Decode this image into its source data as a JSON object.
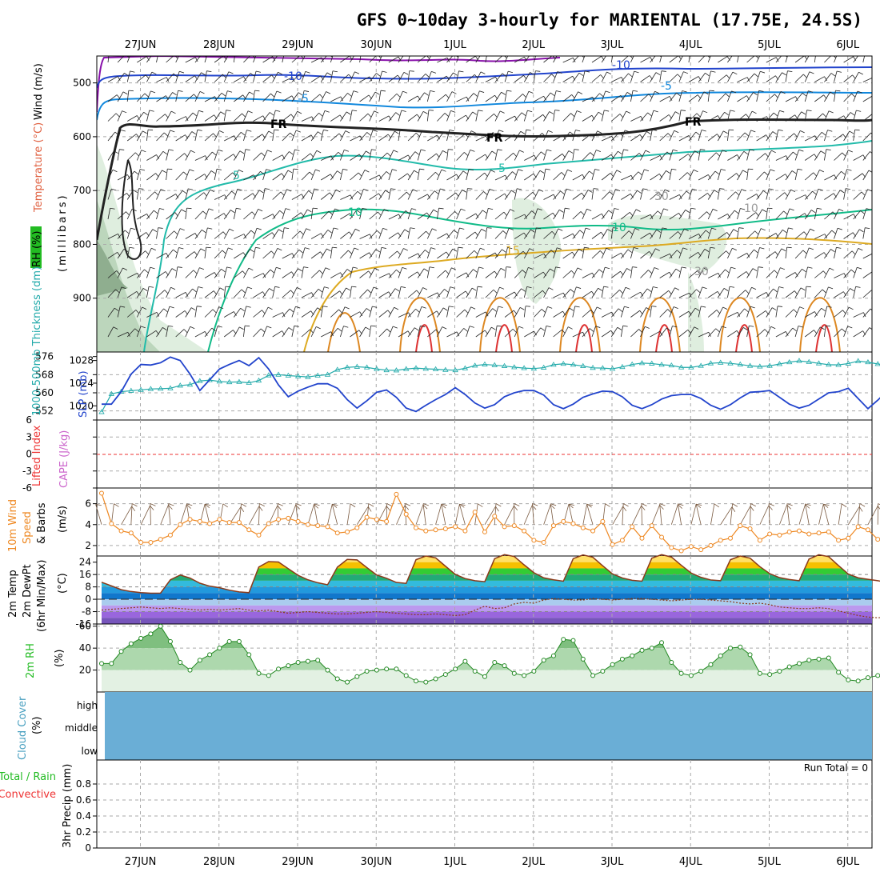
{
  "title": "GFS 0~10day 3-hourly for MARIENTAL (17.75E, 24.5S)",
  "date_labels": [
    "27JUN",
    "28JUN",
    "29JUN",
    "30JUN",
    "1JUL",
    "2JUL",
    "3JUL",
    "4JUL",
    "5JUL",
    "6JUL"
  ],
  "colors": {
    "temperature": "#e06040",
    "wind": "#404040",
    "rh": "#22bb22",
    "slp": "#2244cc",
    "thickness": "#22aaaa",
    "cape": "#cc66cc",
    "lifted_index": "#ee3333",
    "wind10m": "#ee8822",
    "cloud": "#6aaed6",
    "precip_total": "#22bb22",
    "precip_convective": "#ee3333"
  },
  "chart_data": [
    {
      "type": "contour",
      "panel": "upper_air",
      "ylabel_rh": "RH (%)",
      "ylabel_temp": "Temperature (°C)",
      "ylabel_wind": "Wind (m/s)",
      "ylabel_pressure": "(millibars)",
      "y_ticks": [
        "500",
        "600",
        "700",
        "800",
        "900"
      ],
      "ylim": [
        1000,
        450
      ],
      "contour_labels": [
        "-10",
        "-10",
        "-5",
        "-5",
        "5",
        "FR",
        "FR",
        "FR",
        "-5",
        "5",
        "10",
        "10",
        "15",
        "30",
        "10",
        "30"
      ]
    },
    {
      "type": "line",
      "panel": "thickness_slp",
      "ylabel_thickness": "1000-500mb Thickness (dm)",
      "ylabel_slp": "SLP (mb)",
      "thickness_ticks": [
        "576",
        "568",
        "560",
        "552"
      ],
      "slp_ticks": [
        "1028",
        "1024",
        "1020"
      ],
      "series": [
        {
          "name": "SLP (mb)",
          "values": [
            1020.3,
            1020.3,
            1022.5,
            1025.6,
            1027.3,
            1027.2,
            1027.6,
            1028.6,
            1028.0,
            1025.6,
            1022.7,
            1024.6,
            1026.5,
            1027.3,
            1028.0,
            1027.1,
            1028.5,
            1026.5,
            1023.7,
            1021.6,
            1022.6,
            1023.3,
            1023.9,
            1023.9,
            1023.1,
            1021.1,
            1019.6,
            1020.9,
            1022.4,
            1022.8,
            1021.5,
            1019.6,
            1019.0,
            1020.1,
            1021.1,
            1022.0,
            1023.2,
            1022.0,
            1020.5,
            1019.6,
            1020.2,
            1021.6,
            1022.3,
            1022.7,
            1022.7,
            1021.9,
            1020.2,
            1019.5,
            1020.3,
            1021.5,
            1022.1,
            1022.6,
            1022.5,
            1021.6,
            1020.1,
            1019.5,
            1020.2,
            1021.2,
            1021.8,
            1022.0,
            1022.0,
            1021.3,
            1020.1,
            1019.4,
            1020.2,
            1021.4,
            1022.4,
            1022.5,
            1022.7,
            1021.5,
            1020.3,
            1019.6,
            1020.1,
            1021.2,
            1022.3,
            1022.5,
            1023.1,
            1021.3,
            1019.5,
            1021.0,
            1022.7
          ]
        },
        {
          "name": "1000-500mb Thickness (dm)",
          "values": [
            551.5,
            559.5,
            560.5,
            560.9,
            561.3,
            561.7,
            561.8,
            562.0,
            563.2,
            563.6,
            565.2,
            565.6,
            565.0,
            564.7,
            564.8,
            564.4,
            565.4,
            567.7,
            568.0,
            567.6,
            567.3,
            567.0,
            567.6,
            568.0,
            570.2,
            571.2,
            571.5,
            571.2,
            570.5,
            570.0,
            569.9,
            570.5,
            570.9,
            570.6,
            570.4,
            570.1,
            570.0,
            570.8,
            572.0,
            572.5,
            572.2,
            571.8,
            571.3,
            570.9,
            570.7,
            571.1,
            572.4,
            572.8,
            572.4,
            571.8,
            571.0,
            570.9,
            570.6,
            571.4,
            572.5,
            573.1,
            572.9,
            572.4,
            572.1,
            571.2,
            571.2,
            571.9,
            573.0,
            573.3,
            573.0,
            572.5,
            571.9,
            571.6,
            571.9,
            572.7,
            573.5,
            574.1,
            573.6,
            573.0,
            572.4,
            572.3,
            572.9,
            574.0,
            573.5,
            572.7,
            572.1
          ]
        }
      ]
    },
    {
      "type": "line",
      "panel": "stability",
      "ylabel_li": "Lifted Index",
      "ylabel_cape": "CAPE (J/kg)",
      "y_ticks": [
        "6",
        "3",
        "0",
        "-3",
        "-6"
      ],
      "ylim": [
        -6,
        6
      ]
    },
    {
      "type": "line",
      "panel": "wind10m",
      "ylabel": "10m Wind Speed & Barbs (m/s)",
      "y_ticks": [
        "2",
        "4",
        "6"
      ],
      "ylim": [
        1,
        7.5
      ],
      "series": [
        {
          "name": "10m Wind Speed",
          "values": [
            7.0,
            4.1,
            3.4,
            3.2,
            2.3,
            2.3,
            2.6,
            3.0,
            4.0,
            4.5,
            4.3,
            4.1,
            4.5,
            4.2,
            4.2,
            3.5,
            3.0,
            4.1,
            4.5,
            4.6,
            4.3,
            4.0,
            3.9,
            3.8,
            3.2,
            3.3,
            3.7,
            4.7,
            4.5,
            4.3,
            6.9,
            5.0,
            3.7,
            3.4,
            3.5,
            3.6,
            3.8,
            3.4,
            5.2,
            3.3,
            4.8,
            3.8,
            3.9,
            3.4,
            2.5,
            2.3,
            3.9,
            4.3,
            4.1,
            3.7,
            3.4,
            4.3,
            2.1,
            2.5,
            3.8,
            2.7,
            3.9,
            2.8,
            1.8,
            1.5,
            1.9,
            1.6,
            2.0,
            2.5,
            2.7,
            3.9,
            3.6,
            2.5,
            3.1,
            3.0,
            3.3,
            3.4,
            3.1,
            3.2,
            3.3,
            2.5,
            2.7,
            3.8,
            3.5,
            2.6,
            2.4
          ]
        }
      ]
    },
    {
      "type": "area",
      "panel": "temperature",
      "ylabel": "2m Temp 2m DewPt (6hr Min/Max) (°C)",
      "y_ticks": [
        "24",
        "16",
        "8",
        "0",
        "-8",
        "-16"
      ],
      "ylim": [
        -16,
        28
      ],
      "series": [
        {
          "name": "2m Temp",
          "values": [
            11.0,
            8.7,
            6.2,
            5.0,
            4.3,
            3.9,
            4.0,
            12.6,
            15.7,
            13.7,
            10.4,
            8.5,
            7.5,
            5.9,
            4.8,
            4.3,
            20.9,
            24.4,
            24.1,
            19.8,
            15.5,
            12.6,
            10.7,
            9.4,
            20.8,
            25.8,
            25.5,
            20.5,
            15.7,
            13.6,
            10.9,
            10.3,
            25.6,
            28.0,
            26.8,
            21.4,
            16.1,
            13.4,
            12.0,
            11.4,
            26.3,
            28.9,
            27.7,
            22.3,
            17.2,
            13.9,
            12.6,
            11.7,
            26.3,
            28.7,
            27.2,
            21.7,
            16.4,
            13.8,
            12.3,
            11.7,
            26.6,
            28.9,
            27.3,
            22.0,
            17.0,
            14.2,
            12.5,
            12.0,
            25.6,
            28.0,
            26.6,
            21.1,
            16.6,
            14.0,
            12.8,
            12.0,
            26.0,
            28.8,
            27.6,
            21.8,
            16.3,
            13.9,
            12.9,
            12.0,
            11.0
          ]
        },
        {
          "name": "2m DewPt",
          "values": [
            -7.0,
            -6.5,
            -6.0,
            -5.5,
            -5.0,
            -5.5,
            -6.0,
            -5.5,
            -6.0,
            -6.5,
            -7.0,
            -6.5,
            -7.0,
            -6.5,
            -6.0,
            -7.0,
            -7.5,
            -7.0,
            -8.0,
            -9.0,
            -8.5,
            -8.0,
            -8.5,
            -9.0,
            -9.5,
            -9.5,
            -9.0,
            -8.5,
            -8.0,
            -8.5,
            -9.0,
            -9.5,
            -10.0,
            -10.0,
            -9.5,
            -10.0,
            -10.5,
            -10.0,
            -7.0,
            -4.5,
            -6.0,
            -5.5,
            -3.0,
            -2.0,
            -2.5,
            -0.5,
            0.5,
            0.0,
            -0.5,
            -0.5,
            0.5,
            0.0,
            -0.5,
            0.0,
            0.5,
            0.5,
            0.0,
            -0.5,
            -1.0,
            -0.5,
            0.0,
            0.0,
            -0.5,
            -1.0,
            -1.5,
            -2.5,
            -3.0,
            -2.5,
            -3.5,
            -5.0,
            -5.5,
            -6.0,
            -6.0,
            -5.5,
            -6.0,
            -7.5,
            -9.0,
            -10.5,
            -11.5,
            -12.0,
            -11.5
          ]
        }
      ]
    },
    {
      "type": "area",
      "panel": "rh2m",
      "ylabel": "2m RH (%)",
      "y_ticks": [
        "20",
        "40",
        "60"
      ],
      "ylim": [
        0,
        62
      ],
      "series": [
        {
          "name": "2m RH",
          "values": [
            26,
            26,
            37,
            44,
            49,
            53,
            60,
            46,
            27,
            20,
            29,
            34,
            40,
            46,
            46,
            34,
            17,
            15,
            21,
            24,
            27,
            28,
            29,
            20,
            12,
            9,
            14,
            19,
            20,
            21,
            21,
            15,
            10,
            9,
            12,
            16,
            21,
            28,
            19,
            14,
            27,
            24,
            17,
            15,
            19,
            29,
            33,
            48,
            47,
            30,
            15,
            19,
            25,
            30,
            33,
            38,
            40,
            45,
            27,
            17,
            15,
            19,
            25,
            33,
            40,
            41,
            34,
            17,
            16,
            19,
            23,
            26,
            29,
            30,
            31,
            18,
            11,
            10,
            13,
            15,
            16
          ]
        }
      ]
    },
    {
      "type": "area",
      "panel": "cloud_cover",
      "ylabel": "Cloud Cover (%)",
      "levels": [
        "high",
        "middle",
        "low"
      ]
    },
    {
      "type": "bar",
      "panel": "precip",
      "ylabel_total": "Total / Rain",
      "ylabel_conv": "Convective",
      "ylabel_main": "3hr Precip (mm)",
      "run_total": "Run Total = 0",
      "y_ticks": [
        "0",
        "0.2",
        "0.4",
        "0.6",
        "0.8"
      ],
      "ylim": [
        0,
        1
      ]
    }
  ]
}
